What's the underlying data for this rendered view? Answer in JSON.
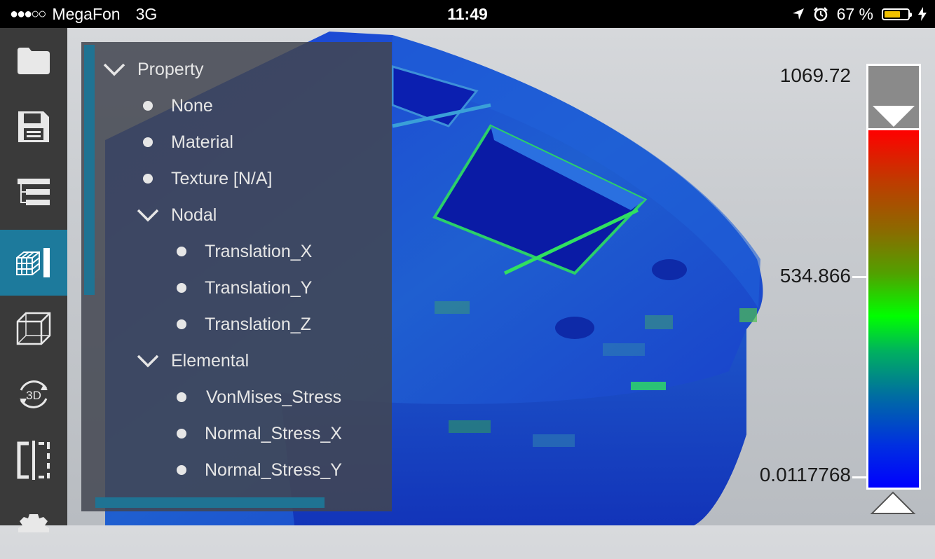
{
  "status_bar": {
    "signal": "●●●○○",
    "carrier": "MegaFon",
    "network": "3G",
    "time": "11:49",
    "battery": "67 %",
    "icons": [
      "location-arrow-icon",
      "alarm-icon",
      "battery-icon",
      "charging-bolt-icon"
    ]
  },
  "toolbar": {
    "items": [
      {
        "name": "folder-icon"
      },
      {
        "name": "save-icon"
      },
      {
        "name": "tree-icon"
      },
      {
        "name": "model-results-icon",
        "active": true
      },
      {
        "name": "wireframe-cube-icon"
      },
      {
        "name": "rotate-3d-icon",
        "label": "3D"
      },
      {
        "name": "section-split-icon"
      },
      {
        "name": "settings-gear-icon"
      }
    ]
  },
  "tree": {
    "root": "Property",
    "items": [
      {
        "label": "None",
        "level": 1,
        "type": "leaf"
      },
      {
        "label": "Material",
        "level": 1,
        "type": "leaf"
      },
      {
        "label": "Texture [N/A]",
        "level": 1,
        "type": "leaf"
      },
      {
        "label": "Nodal",
        "level": 1,
        "type": "group"
      },
      {
        "label": "Translation_X",
        "level": 2,
        "type": "leaf"
      },
      {
        "label": "Translation_Y",
        "level": 2,
        "type": "leaf"
      },
      {
        "label": "Translation_Z",
        "level": 2,
        "type": "leaf"
      },
      {
        "label": "Elemental",
        "level": 1,
        "type": "group"
      },
      {
        "label": "VonMises_Stress",
        "level": 2,
        "type": "leaf",
        "selected": true
      },
      {
        "label": "Normal_Stress_X",
        "level": 2,
        "type": "leaf"
      },
      {
        "label": "Normal_Stress_Y",
        "level": 2,
        "type": "leaf"
      }
    ]
  },
  "colorbar": {
    "max": "1069.72",
    "mid": "534.866",
    "min": "0.0117768",
    "colors": [
      "#ff0000",
      "#00ff00",
      "#0000ff"
    ]
  }
}
